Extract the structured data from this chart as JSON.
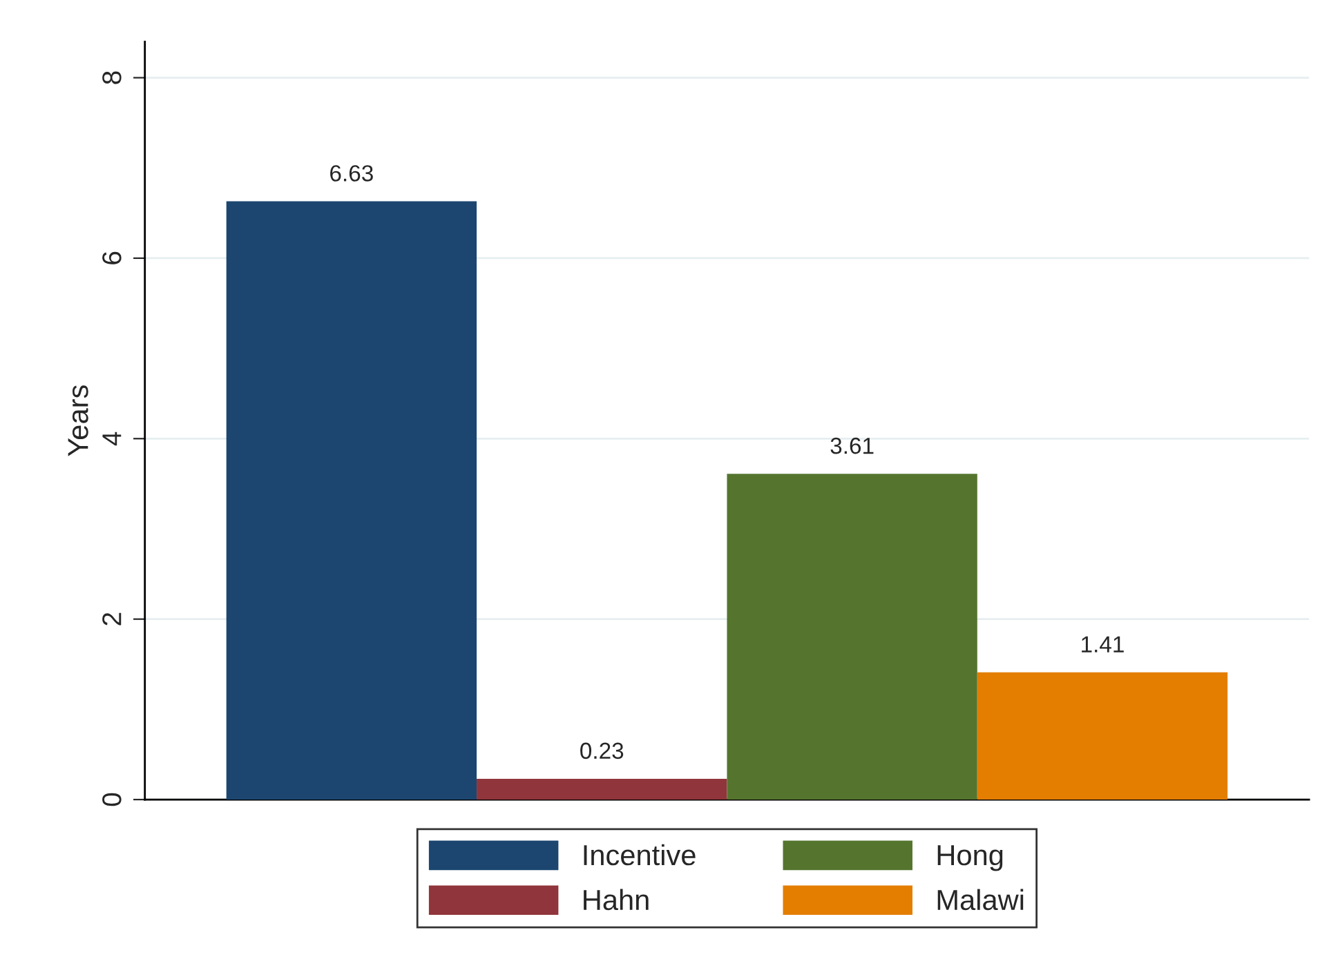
{
  "chart_data": {
    "type": "bar",
    "ylabel": "Years",
    "categories": [
      null
    ],
    "series": [
      {
        "name": "Incentive",
        "color": "#1c4670",
        "values": [
          6.63
        ]
      },
      {
        "name": "Hahn",
        "color": "#90353b",
        "values": [
          0.23
        ]
      },
      {
        "name": "Hong",
        "color": "#55752f",
        "values": [
          3.61
        ]
      },
      {
        "name": "Malawi",
        "color": "#e37e00",
        "values": [
          1.41
        ]
      }
    ],
    "ylim": [
      0,
      8.4
    ],
    "yticks": [
      0,
      2,
      4,
      6,
      8
    ],
    "grid": "y",
    "legend": "bottom",
    "data_labels": true
  }
}
